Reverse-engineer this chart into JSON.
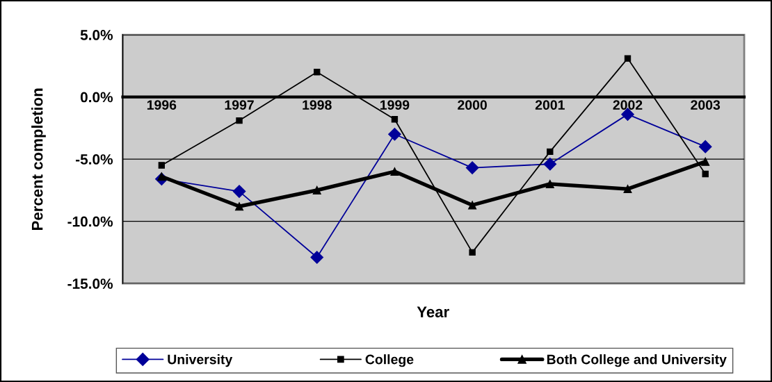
{
  "chart_data": {
    "type": "line",
    "xlabel": "Year",
    "ylabel": "Percent completion",
    "categories": [
      "1996",
      "1997",
      "1998",
      "1999",
      "2000",
      "2001",
      "2002",
      "2003"
    ],
    "series": [
      {
        "name": "University",
        "color": "#000099",
        "marker": "diamond",
        "values": [
          -6.6,
          -7.6,
          -12.9,
          -3.0,
          -5.7,
          -5.4,
          -1.4,
          -4.0
        ]
      },
      {
        "name": "College",
        "color": "#000000",
        "marker": "square",
        "values": [
          -5.5,
          -1.9,
          2.0,
          -1.8,
          -12.5,
          -4.4,
          3.1,
          -6.2
        ]
      },
      {
        "name": "Both College and University",
        "color": "#000000",
        "marker": "triangle",
        "values": [
          -6.4,
          -8.8,
          -7.5,
          -6.0,
          -8.7,
          -7.0,
          -7.4,
          -5.2
        ]
      }
    ],
    "ylim": [
      -15,
      5
    ],
    "yticks": [
      {
        "value": 5,
        "label": "5.0%"
      },
      {
        "value": 0,
        "label": "0.0%"
      },
      {
        "value": -5,
        "label": "-5.0%"
      },
      {
        "value": -10,
        "label": "-10.0%"
      },
      {
        "value": -15,
        "label": "-15.0%"
      }
    ],
    "grid": "y",
    "legend": "bottom",
    "line_style": "solid"
  }
}
